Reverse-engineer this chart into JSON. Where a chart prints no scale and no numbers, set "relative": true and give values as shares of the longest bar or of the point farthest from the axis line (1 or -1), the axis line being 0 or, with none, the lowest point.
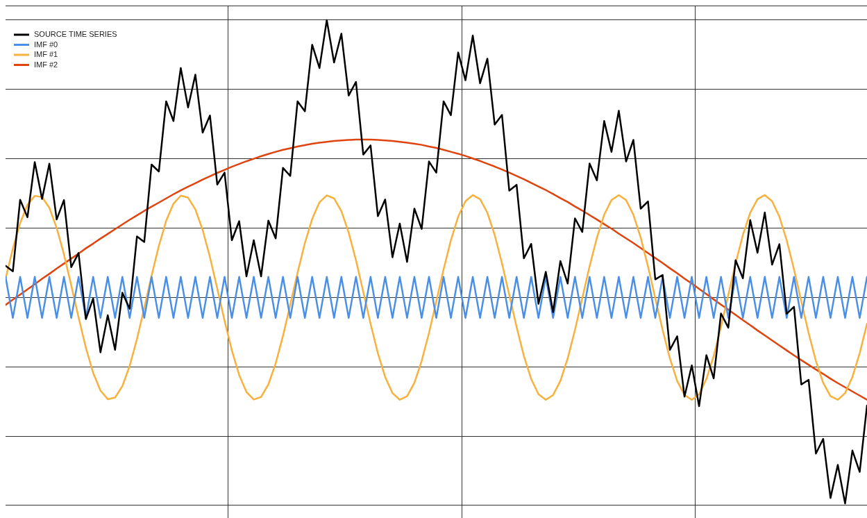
{
  "chart_data": {
    "type": "line",
    "relative": true,
    "grid": true,
    "legend": "top left",
    "categories": [
      null,
      null,
      null,
      null,
      null,
      null,
      null,
      null,
      null,
      null,
      null,
      null,
      null,
      null,
      null,
      null,
      null,
      null,
      null,
      null,
      null,
      null,
      null,
      null,
      null,
      null,
      null,
      null,
      null,
      null,
      null,
      null,
      null,
      null,
      null,
      null,
      null,
      null,
      null,
      null,
      null,
      null,
      null,
      null,
      null,
      null,
      null,
      null,
      null,
      null,
      null,
      null,
      null,
      null,
      null,
      null,
      null,
      null,
      null,
      null,
      null,
      null,
      null,
      null,
      null,
      null,
      null,
      null,
      null,
      null,
      null,
      null,
      null,
      null,
      null,
      null,
      null,
      null,
      null,
      null,
      null,
      null,
      null,
      null,
      null,
      null,
      null,
      null,
      null,
      null,
      null,
      null,
      null,
      null,
      null,
      null,
      null,
      null,
      null,
      null,
      null,
      null,
      null,
      null,
      null,
      null,
      null,
      null,
      null,
      null,
      null,
      null,
      null,
      null,
      null,
      null,
      null,
      null,
      null
    ],
    "series": [
      {
        "name": "SOURCE TIME SERIES",
        "color": "#000000",
        "values": [
          0.114,
          0.094,
          0.352,
          0.289,
          0.488,
          0.355,
          0.482,
          0.281,
          0.351,
          0.109,
          0.16,
          -0.078,
          -0.004,
          -0.198,
          -0.064,
          -0.189,
          0.017,
          -0.041,
          0.22,
          0.2,
          0.479,
          0.454,
          0.707,
          0.636,
          0.827,
          0.685,
          0.803,
          0.594,
          0.656,
          0.407,
          0.45,
          0.206,
          0.275,
          0.076,
          0.206,
          0.076,
          0.277,
          0.213,
          0.467,
          0.438,
          0.707,
          0.671,
          0.911,
          0.827,
          1.0,
          0.847,
          0.951,
          0.728,
          0.777,
          0.515,
          0.548,
          0.293,
          0.353,
          0.145,
          0.266,
          0.128,
          0.32,
          0.247,
          0.49,
          0.45,
          0.707,
          0.657,
          0.883,
          0.783,
          0.944,
          0.772,
          0.861,
          0.623,
          0.658,
          0.385,
          0.406,
          0.141,
          0.193,
          -0.023,
          0.092,
          -0.053,
          0.131,
          0.05,
          0.285,
          0.236,
          0.483,
          0.422,
          0.636,
          0.525,
          0.673,
          0.49,
          0.568,
          0.32,
          0.346,
          0.065,
          0.081,
          -0.189,
          -0.14,
          -0.358,
          -0.245,
          -0.392,
          -0.208,
          -0.292,
          -0.058,
          -0.109,
          0.134,
          0.069,
          0.279,
          0.161,
          0.306,
          0.118,
          0.192,
          -0.059,
          -0.034,
          -0.314,
          -0.297,
          -0.563,
          -0.51,
          -0.723,
          -0.604,
          -0.743,
          -0.552,
          -0.629,
          -0.39
        ]
      },
      {
        "name": "IMF #0",
        "color": "#4a8fe7",
        "values": [
          0.074,
          -0.074,
          0.074,
          -0.074,
          0.074,
          -0.074,
          0.074,
          -0.074,
          0.074,
          -0.074,
          0.074,
          -0.074,
          0.074,
          -0.074,
          0.074,
          -0.074,
          0.074,
          -0.074,
          0.074,
          -0.074,
          0.074,
          -0.074,
          0.074,
          -0.074,
          0.074,
          -0.074,
          0.074,
          -0.074,
          0.074,
          -0.074,
          0.074,
          -0.074,
          0.074,
          -0.074,
          0.074,
          -0.074,
          0.074,
          -0.074,
          0.074,
          -0.074,
          0.074,
          -0.074,
          0.074,
          -0.074,
          0.074,
          -0.074,
          0.074,
          -0.074,
          0.074,
          -0.074,
          0.074,
          -0.074,
          0.074,
          -0.074,
          0.074,
          -0.074,
          0.074,
          -0.074,
          0.074,
          -0.074,
          0.074,
          -0.074,
          0.074,
          -0.074,
          0.074,
          -0.074,
          0.074,
          -0.074,
          0.074,
          -0.074,
          0.074,
          -0.074,
          0.074,
          -0.074,
          0.074,
          -0.074,
          0.074,
          -0.074,
          0.074,
          -0.074,
          0.074,
          -0.074,
          0.074,
          -0.074,
          0.074,
          -0.074,
          0.074,
          -0.074,
          0.074,
          -0.074,
          0.074,
          -0.074,
          0.074,
          -0.074,
          0.074,
          -0.074,
          0.074,
          -0.074,
          0.074,
          -0.074,
          0.074,
          -0.074,
          0.074,
          -0.074,
          0.074,
          -0.074,
          0.074,
          -0.074,
          0.074,
          -0.074,
          0.074,
          -0.074,
          0.074,
          -0.074,
          0.074,
          -0.074,
          0.074,
          -0.074,
          0.074
        ]
      },
      {
        "name": "IMF #1",
        "color": "#f9b03c",
        "values": [
          0.067,
          0.176,
          0.268,
          0.334,
          0.366,
          0.362,
          0.323,
          0.251,
          0.155,
          0.043,
          -0.072,
          -0.181,
          -0.272,
          -0.336,
          -0.367,
          -0.361,
          -0.32,
          -0.247,
          -0.15,
          -0.038,
          0.078,
          0.186,
          0.276,
          0.338,
          0.367,
          0.36,
          0.317,
          0.243,
          0.145,
          0.032,
          -0.084,
          -0.191,
          -0.28,
          -0.341,
          -0.368,
          -0.359,
          -0.314,
          -0.238,
          -0.139,
          -0.026,
          0.089,
          0.196,
          0.283,
          0.343,
          0.368,
          0.357,
          0.311,
          0.234,
          0.134,
          0.02,
          -0.095,
          -0.201,
          -0.287,
          -0.345,
          -0.369,
          -0.356,
          -0.308,
          -0.229,
          -0.128,
          -0.015,
          0.101,
          0.206,
          0.291,
          0.347,
          0.369,
          0.354,
          0.305,
          0.225,
          0.123,
          0.009,
          -0.106,
          -0.211,
          -0.294,
          -0.349,
          -0.369,
          -0.352,
          -0.301,
          -0.22,
          -0.117,
          -0.003,
          0.112,
          0.215,
          0.298,
          0.351,
          0.369,
          0.351,
          0.298,
          0.216,
          0.112,
          -0.003,
          -0.117,
          -0.22,
          -0.301,
          -0.352,
          -0.369,
          -0.349,
          -0.294,
          -0.211,
          -0.106,
          0.009,
          0.123,
          0.225,
          0.305,
          0.354,
          0.369,
          0.347,
          0.291,
          0.206,
          0.101,
          -0.014,
          -0.128,
          -0.229,
          -0.308,
          -0.356,
          -0.369,
          -0.345,
          -0.287,
          -0.201,
          -0.095
        ]
      },
      {
        "name": "IMF #2",
        "color": "#e0440e",
        "values": [
          -0.027,
          -0.008,
          0.01,
          0.029,
          0.048,
          0.067,
          0.085,
          0.104,
          0.122,
          0.14,
          0.158,
          0.177,
          0.194,
          0.212,
          0.229,
          0.246,
          0.263,
          0.28,
          0.296,
          0.312,
          0.327,
          0.342,
          0.357,
          0.372,
          0.386,
          0.399,
          0.412,
          0.425,
          0.437,
          0.449,
          0.46,
          0.471,
          0.481,
          0.491,
          0.5,
          0.509,
          0.517,
          0.525,
          0.532,
          0.538,
          0.544,
          0.549,
          0.554,
          0.558,
          0.561,
          0.564,
          0.566,
          0.568,
          0.569,
          0.569,
          0.569,
          0.568,
          0.566,
          0.564,
          0.561,
          0.558,
          0.554,
          0.55,
          0.544,
          0.539,
          0.532,
          0.525,
          0.518,
          0.51,
          0.501,
          0.492,
          0.482,
          0.472,
          0.461,
          0.45,
          0.438,
          0.426,
          0.413,
          0.4,
          0.387,
          0.373,
          0.358,
          0.344,
          0.328,
          0.313,
          0.297,
          0.281,
          0.264,
          0.248,
          0.23,
          0.213,
          0.196,
          0.178,
          0.16,
          0.142,
          0.124,
          0.105,
          0.087,
          0.068,
          0.05,
          0.031,
          0.012,
          -0.007,
          -0.026,
          -0.044,
          -0.063,
          -0.082,
          -0.1,
          -0.119,
          -0.137,
          -0.155,
          -0.173,
          -0.191,
          -0.209,
          -0.226,
          -0.243,
          -0.26,
          -0.276,
          -0.293,
          -0.309,
          -0.324,
          -0.339,
          -0.354,
          -0.369
        ]
      }
    ]
  }
}
